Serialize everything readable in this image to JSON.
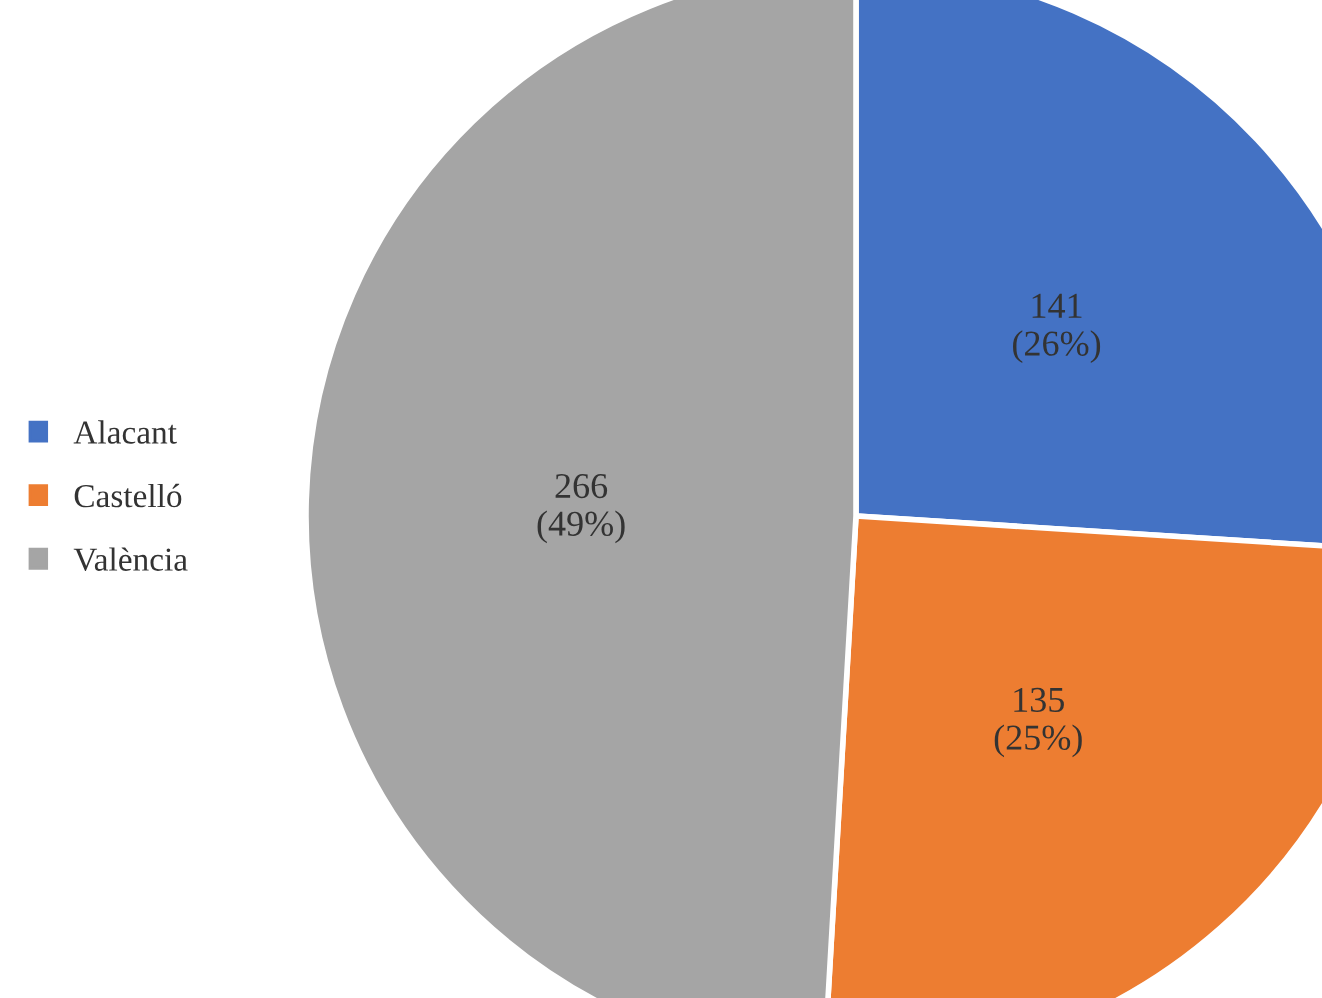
{
  "chart_data": {
    "type": "pie",
    "categories": [
      "Alacant",
      "Castelló",
      "València"
    ],
    "values": [
      141,
      135,
      266
    ],
    "colors": [
      "#4472c4",
      "#ed7d31",
      "#a5a5a5"
    ],
    "value_labels": [
      "141\n(26%)",
      "135\n(25%)",
      "266\n(49%)"
    ],
    "legend": "left"
  }
}
